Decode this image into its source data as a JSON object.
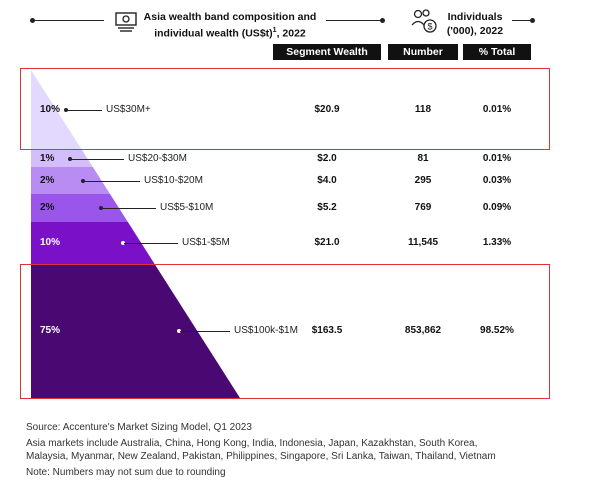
{
  "header": {
    "title_line1": "Asia wealth band composition and",
    "title_line2": "individual wealth (US$t)",
    "title_sup": "1",
    "title_year": ", 2022",
    "right_line1": "Individuals",
    "right_line2": "('000), 2022",
    "money_icon": "money-bills-icon",
    "people_icon": "people-dollar-icon"
  },
  "columns": [
    "Segment Wealth",
    "Number",
    "% Total"
  ],
  "chart_data": {
    "type": "table",
    "title": "Asia wealth band composition and individual wealth (US$t), 2022",
    "rows": [
      {
        "share": "10%",
        "band": "US$30M+",
        "wealth": "$20.9",
        "number": "118",
        "total": "0.01%",
        "color": "#e3d9ff"
      },
      {
        "share": "1%",
        "band": "US$20-$30M",
        "wealth": "$2.0",
        "number": "81",
        "total": "0.01%",
        "color": "#d4bdfb"
      },
      {
        "share": "2%",
        "band": "US$10-$20M",
        "wealth": "$4.0",
        "number": "295",
        "total": "0.03%",
        "color": "#b98cf4"
      },
      {
        "share": "2%",
        "band": "US$5-$10M",
        "wealth": "$5.2",
        "number": "769",
        "total": "0.09%",
        "color": "#9a55ea"
      },
      {
        "share": "10%",
        "band": "US$1-$5M",
        "wealth": "$21.0",
        "number": "11,545",
        "total": "1.33%",
        "color": "#7a10c8"
      },
      {
        "share": "75%",
        "band": "US$100k-$1M",
        "wealth": "$163.5",
        "number": "853,862",
        "total": "98.52%",
        "color": "#4a0872"
      }
    ]
  },
  "footer": {
    "source": "Source: Accenture's Market Sizing Model, Q1 2023",
    "markets_line1": "Asia markets include Australia, China, Hong Kong, India, Indonesia, Japan, Kazakhstan, South Korea,",
    "markets_line2": "Malaysia, Myanmar, New Zealand, Pakistan, Philippines, Singapore, Sri Lanka, Taiwan, Thailand, Vietnam",
    "note": "Note: Numbers may not sum due to rounding"
  },
  "highlight_color": "#e0303a"
}
